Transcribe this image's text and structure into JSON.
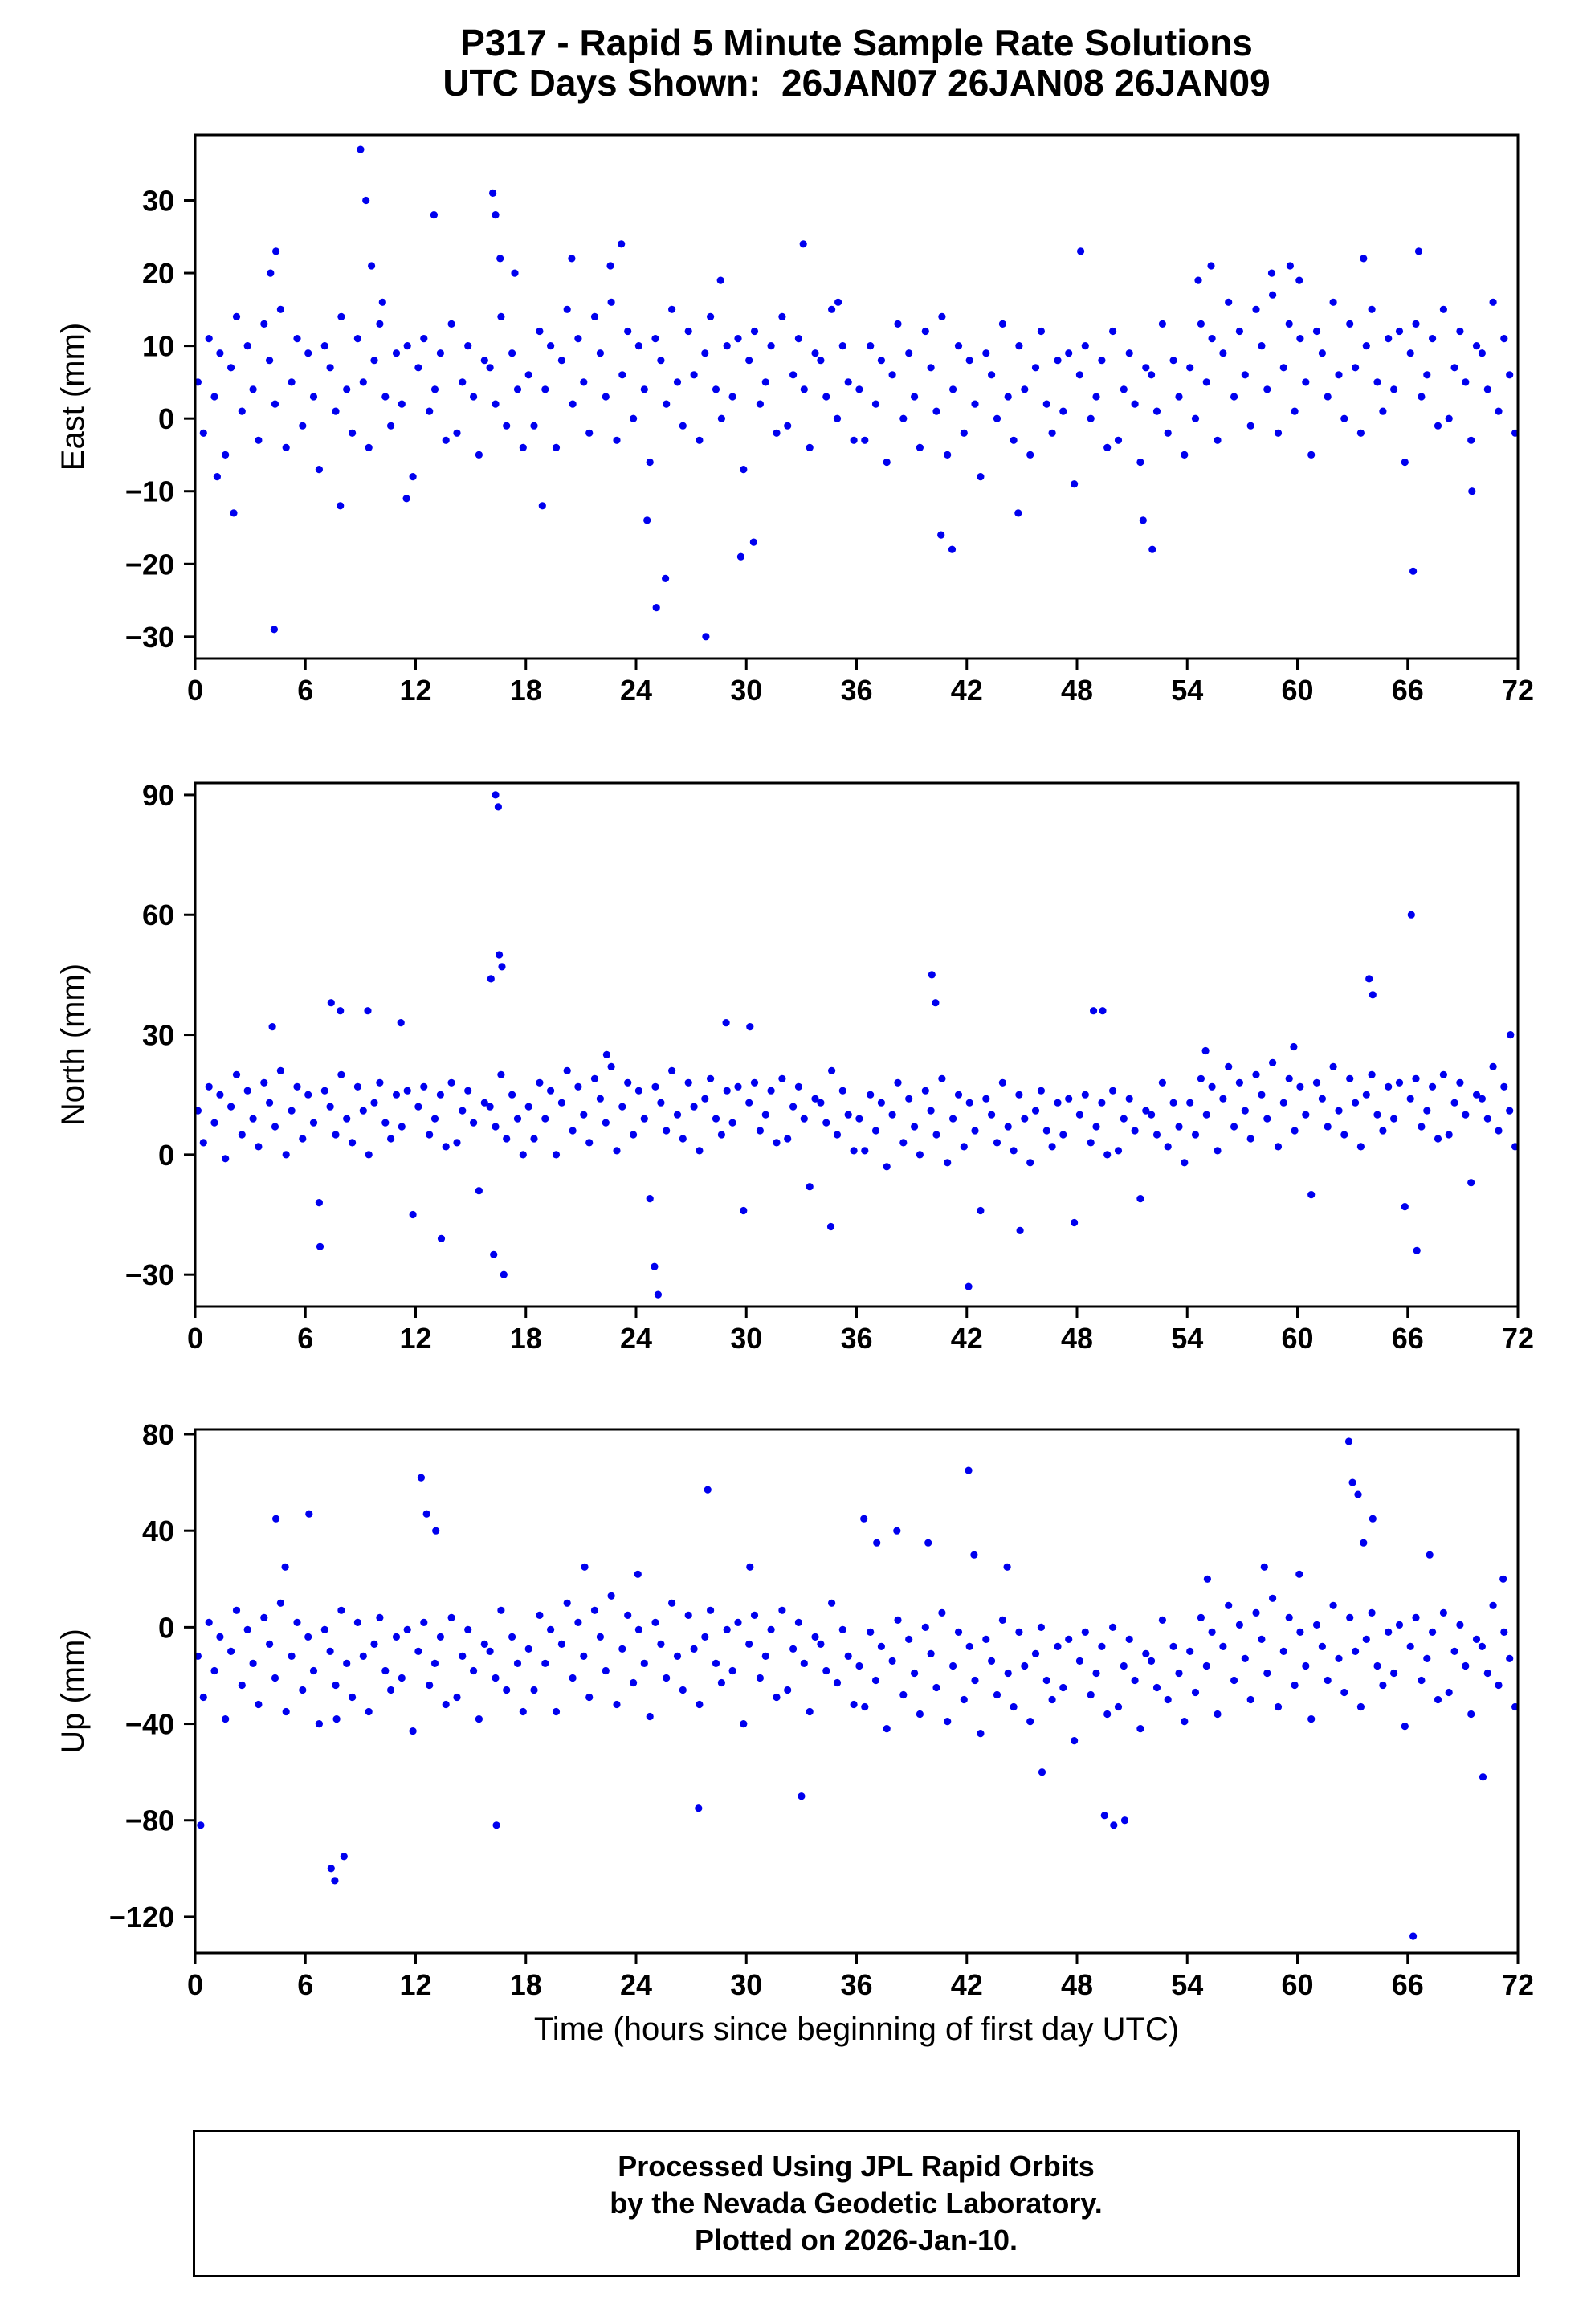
{
  "title_line1": "P317 - Rapid 5 Minute Sample Rate Solutions",
  "title_line2": "UTC Days Shown:  26JAN07 26JAN08 26JAN09",
  "xlabel": "Time (hours since beginning of first day UTC)",
  "footer": {
    "line1": "Processed Using JPL Rapid Orbits",
    "line2": "by the Nevada Geodetic Laboratory.",
    "line3": "Plotted on 2026-Jan-10."
  },
  "colors": {
    "point": "#0000ee",
    "axis": "#000000"
  },
  "chart_data": [
    {
      "type": "scatter",
      "ylabel": "East (mm)",
      "ylim": [
        -33,
        39
      ],
      "yticks": [
        -30,
        -20,
        -10,
        0,
        10,
        20,
        30
      ],
      "xlim": [
        0,
        72
      ],
      "xticks": [
        0,
        6,
        12,
        18,
        24,
        30,
        36,
        42,
        48,
        54,
        60,
        66,
        72
      ],
      "x_start": 0.15,
      "x_step": 0.3,
      "y": [
        5,
        -2,
        11,
        3,
        9,
        -5,
        7,
        14,
        1,
        10,
        4,
        -3,
        13,
        8,
        2,
        15,
        -4,
        5,
        11,
        -1,
        9,
        3,
        -7,
        10,
        7,
        1,
        14,
        4,
        -2,
        11,
        5,
        -4,
        8,
        13,
        3,
        -1,
        9,
        2,
        10,
        -8,
        7,
        11,
        1,
        4,
        9,
        -3,
        13,
        -2,
        5,
        10,
        3,
        -5,
        8,
        7,
        2,
        14,
        -1,
        9,
        4,
        -4,
        6,
        -1,
        12,
        4,
        10,
        -4,
        8,
        15,
        2,
        11,
        5,
        -2,
        14,
        9,
        3,
        16,
        -3,
        6,
        12,
        0,
        10,
        4,
        -6,
        11,
        8,
        2,
        15,
        5,
        -1,
        12,
        6,
        -3,
        9,
        14,
        4,
        0,
        10,
        3,
        11,
        -7,
        8,
        12,
        2,
        5,
        10,
        -2,
        14,
        -1,
        6,
        11,
        4,
        -4,
        9,
        8,
        3,
        15,
        0,
        10,
        5,
        -3,
        4,
        -3,
        10,
        2,
        8,
        -6,
        6,
        13,
        0,
        9,
        3,
        -4,
        12,
        7,
        1,
        14,
        -5,
        4,
        10,
        -2,
        8,
        2,
        -8,
        9,
        6,
        0,
        13,
        3,
        -3,
        10,
        4,
        -5,
        7,
        12,
        2,
        -2,
        8,
        1,
        9,
        -9,
        6,
        10,
        0,
        3,
        8,
        -4,
        12,
        -3,
        4,
        9,
        2,
        -6,
        7,
        6,
        1,
        13,
        -2,
        8,
        3,
        -5,
        7,
        0,
        13,
        5,
        11,
        -3,
        9,
        16,
        3,
        12,
        6,
        -1,
        15,
        10,
        4,
        17,
        -2,
        7,
        13,
        1,
        11,
        5,
        -5,
        12,
        9,
        3,
        16,
        6,
        0,
        13,
        7,
        -2,
        10,
        15,
        5,
        1,
        11,
        4,
        12,
        -6,
        9,
        13,
        3,
        6,
        11,
        -1,
        15,
        0,
        7,
        12,
        5,
        -3,
        10,
        9,
        4,
        16,
        1,
        11,
        6,
        -2
      ],
      "outliers": [
        [
          4.3,
          -29
        ],
        [
          4.4,
          23
        ],
        [
          4.1,
          20
        ],
        [
          9.0,
          37
        ],
        [
          9.3,
          30
        ],
        [
          9.6,
          21
        ],
        [
          10.2,
          16
        ],
        [
          13.0,
          28
        ],
        [
          16.2,
          31
        ],
        [
          16.35,
          28
        ],
        [
          16.6,
          22
        ],
        [
          17.4,
          20
        ],
        [
          20.5,
          22
        ],
        [
          22.6,
          21
        ],
        [
          23.2,
          24
        ],
        [
          18.9,
          -12
        ],
        [
          24.6,
          -14
        ],
        [
          25.1,
          -26
        ],
        [
          25.6,
          -22
        ],
        [
          27.8,
          -30
        ],
        [
          28.6,
          19
        ],
        [
          29.7,
          -19
        ],
        [
          30.4,
          -17
        ],
        [
          33.1,
          24
        ],
        [
          35.0,
          16
        ],
        [
          40.6,
          -16
        ],
        [
          41.2,
          -18
        ],
        [
          44.8,
          -13
        ],
        [
          48.2,
          23
        ],
        [
          51.6,
          -14
        ],
        [
          52.1,
          -18
        ],
        [
          54.6,
          19
        ],
        [
          55.3,
          21
        ],
        [
          58.6,
          20
        ],
        [
          59.6,
          21
        ],
        [
          60.1,
          19
        ],
        [
          63.6,
          22
        ],
        [
          66.3,
          -21
        ],
        [
          66.6,
          23
        ],
        [
          69.5,
          -10
        ],
        [
          2.1,
          -13
        ],
        [
          1.2,
          -8
        ],
        [
          7.9,
          -12
        ],
        [
          11.5,
          -11
        ]
      ]
    },
    {
      "type": "scatter",
      "ylabel": "North (mm)",
      "ylim": [
        -38,
        93
      ],
      "yticks": [
        -30,
        0,
        30,
        60,
        90
      ],
      "xlim": [
        0,
        72
      ],
      "xticks": [
        0,
        6,
        12,
        18,
        24,
        30,
        36,
        42,
        48,
        54,
        60,
        66,
        72
      ],
      "x_start": 0.15,
      "x_step": 0.3,
      "y": [
        11,
        3,
        17,
        8,
        15,
        -1,
        12,
        20,
        5,
        16,
        9,
        2,
        18,
        13,
        7,
        21,
        0,
        11,
        17,
        4,
        15,
        8,
        -12,
        16,
        12,
        5,
        20,
        9,
        3,
        17,
        11,
        0,
        13,
        18,
        8,
        4,
        15,
        7,
        16,
        -15,
        12,
        17,
        5,
        9,
        15,
        2,
        18,
        3,
        11,
        16,
        8,
        -9,
        13,
        12,
        7,
        20,
        4,
        15,
        9,
        0,
        12,
        4,
        18,
        9,
        16,
        0,
        13,
        21,
        6,
        17,
        10,
        3,
        19,
        14,
        8,
        22,
        1,
        12,
        18,
        5,
        16,
        9,
        -11,
        17,
        13,
        6,
        21,
        10,
        4,
        18,
        12,
        1,
        14,
        19,
        9,
        5,
        16,
        8,
        17,
        -14,
        13,
        18,
        6,
        10,
        16,
        3,
        19,
        4,
        12,
        17,
        9,
        -8,
        14,
        13,
        8,
        21,
        5,
        16,
        10,
        1,
        9,
        1,
        15,
        6,
        13,
        -3,
        10,
        18,
        3,
        14,
        7,
        0,
        16,
        11,
        5,
        19,
        -2,
        9,
        15,
        2,
        13,
        6,
        -14,
        14,
        10,
        3,
        18,
        7,
        1,
        15,
        9,
        -2,
        11,
        16,
        6,
        2,
        13,
        5,
        14,
        -17,
        10,
        15,
        3,
        7,
        13,
        0,
        16,
        1,
        9,
        14,
        6,
        -11,
        11,
        10,
        5,
        18,
        2,
        13,
        7,
        -2,
        13,
        5,
        19,
        10,
        17,
        1,
        14,
        22,
        7,
        18,
        11,
        4,
        20,
        15,
        9,
        23,
        2,
        13,
        19,
        6,
        17,
        10,
        -10,
        18,
        14,
        7,
        22,
        11,
        5,
        19,
        13,
        2,
        15,
        20,
        10,
        6,
        17,
        9,
        18,
        -13,
        14,
        19,
        7,
        11,
        17,
        4,
        20,
        5,
        13,
        18,
        10,
        -7,
        15,
        14,
        9,
        22,
        6,
        17,
        11,
        2
      ],
      "outliers": [
        [
          16.35,
          90
        ],
        [
          16.5,
          87
        ],
        [
          16.55,
          50
        ],
        [
          16.7,
          47
        ],
        [
          16.1,
          44
        ],
        [
          7.4,
          38
        ],
        [
          7.9,
          36
        ],
        [
          9.4,
          36
        ],
        [
          11.2,
          33
        ],
        [
          25.2,
          -35
        ],
        [
          25.0,
          -28
        ],
        [
          16.25,
          -25
        ],
        [
          16.8,
          -30
        ],
        [
          4.2,
          32
        ],
        [
          40.1,
          45
        ],
        [
          40.3,
          38
        ],
        [
          42.1,
          -33
        ],
        [
          48.9,
          36
        ],
        [
          49.4,
          36
        ],
        [
          63.9,
          44
        ],
        [
          64.1,
          40
        ],
        [
          66.2,
          60
        ],
        [
          66.5,
          -24
        ],
        [
          71.6,
          30
        ],
        [
          28.9,
          33
        ],
        [
          30.2,
          32
        ],
        [
          22.4,
          25
        ],
        [
          55.0,
          26
        ],
        [
          59.8,
          27
        ],
        [
          6.8,
          -23
        ],
        [
          13.4,
          -21
        ],
        [
          34.6,
          -18
        ],
        [
          44.9,
          -19
        ]
      ]
    },
    {
      "type": "scatter",
      "ylabel": "Up (mm)",
      "ylim": [
        -135,
        82
      ],
      "yticks": [
        -120,
        -80,
        -40,
        0,
        40,
        80
      ],
      "xlim": [
        0,
        72
      ],
      "xticks": [
        0,
        6,
        12,
        18,
        24,
        30,
        36,
        42,
        48,
        54,
        60,
        66,
        72
      ],
      "x_start": 0.15,
      "x_step": 0.3,
      "y": [
        -12,
        -29,
        2,
        -18,
        -4,
        -38,
        -10,
        7,
        -24,
        -1,
        -15,
        -32,
        4,
        -7,
        -21,
        10,
        -35,
        -12,
        2,
        -26,
        -4,
        -18,
        -40,
        -1,
        -10,
        -24,
        7,
        -15,
        -29,
        2,
        -12,
        -35,
        -7,
        4,
        -18,
        -26,
        -4,
        -21,
        -1,
        -43,
        -10,
        2,
        -24,
        -15,
        -4,
        -32,
        4,
        -29,
        -12,
        -1,
        -18,
        -38,
        -7,
        -10,
        -21,
        7,
        -26,
        -4,
        -15,
        -35,
        -9,
        -26,
        5,
        -15,
        -1,
        -35,
        -7,
        10,
        -21,
        2,
        -12,
        -29,
        7,
        -4,
        -18,
        13,
        -32,
        -9,
        5,
        -23,
        -1,
        -15,
        -37,
        2,
        -7,
        -21,
        10,
        -12,
        -26,
        5,
        -9,
        -32,
        -4,
        7,
        -15,
        -23,
        -1,
        -18,
        2,
        -40,
        -7,
        5,
        -21,
        -12,
        -1,
        -29,
        7,
        -26,
        -9,
        2,
        -15,
        -35,
        -4,
        -7,
        -18,
        10,
        -23,
        -1,
        -12,
        -32,
        -16,
        -33,
        -2,
        -22,
        -8,
        -42,
        -14,
        3,
        -28,
        -5,
        -19,
        -36,
        0,
        -11,
        -25,
        6,
        -39,
        -16,
        -2,
        -30,
        -8,
        -22,
        -44,
        -5,
        -14,
        -28,
        3,
        -19,
        -33,
        -2,
        -16,
        -39,
        -11,
        0,
        -22,
        -30,
        -8,
        -25,
        -5,
        -47,
        -14,
        -2,
        -28,
        -19,
        -8,
        -36,
        0,
        -33,
        -16,
        -5,
        -22,
        -42,
        -11,
        -14,
        -25,
        3,
        -30,
        -8,
        -19,
        -39,
        -10,
        -27,
        4,
        -16,
        -2,
        -36,
        -8,
        9,
        -22,
        1,
        -13,
        -30,
        6,
        -5,
        -19,
        12,
        -33,
        -10,
        4,
        -24,
        -2,
        -16,
        -38,
        1,
        -8,
        -22,
        9,
        -13,
        -27,
        4,
        -10,
        -33,
        -5,
        6,
        -16,
        -24,
        -2,
        -19,
        1,
        -41,
        -8,
        4,
        -22,
        -13,
        -2,
        -30,
        6,
        -27,
        -10,
        1,
        -16,
        -36,
        -5,
        -8,
        -19,
        9,
        -24,
        -2,
        -13,
        -33
      ],
      "outliers": [
        [
          0.3,
          -82
        ],
        [
          4.4,
          45
        ],
        [
          4.9,
          25
        ],
        [
          6.2,
          47
        ],
        [
          7.4,
          -100
        ],
        [
          7.6,
          -105
        ],
        [
          12.3,
          62
        ],
        [
          12.6,
          47
        ],
        [
          13.1,
          40
        ],
        [
          16.4,
          -82
        ],
        [
          21.2,
          25
        ],
        [
          24.1,
          22
        ],
        [
          27.4,
          -75
        ],
        [
          27.9,
          57
        ],
        [
          30.2,
          25
        ],
        [
          33.0,
          -70
        ],
        [
          36.4,
          45
        ],
        [
          37.1,
          35
        ],
        [
          38.2,
          40
        ],
        [
          39.9,
          35
        ],
        [
          42.1,
          65
        ],
        [
          42.4,
          30
        ],
        [
          44.2,
          25
        ],
        [
          46.1,
          -60
        ],
        [
          49.5,
          -78
        ],
        [
          50.0,
          -82
        ],
        [
          50.6,
          -80
        ],
        [
          55.1,
          20
        ],
        [
          58.2,
          25
        ],
        [
          60.1,
          22
        ],
        [
          62.8,
          77
        ],
        [
          63.0,
          60
        ],
        [
          63.3,
          55
        ],
        [
          63.6,
          35
        ],
        [
          64.1,
          45
        ],
        [
          66.3,
          -128
        ],
        [
          67.2,
          30
        ],
        [
          70.1,
          -62
        ],
        [
          71.2,
          20
        ],
        [
          7.7,
          -38
        ],
        [
          8.1,
          -95
        ]
      ]
    }
  ]
}
